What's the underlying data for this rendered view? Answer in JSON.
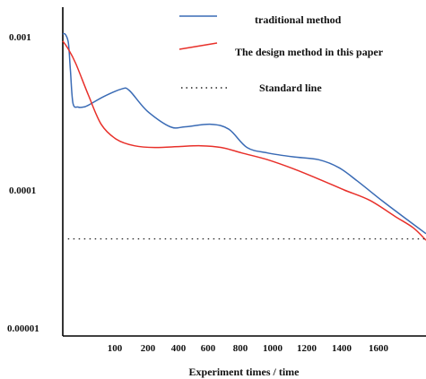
{
  "chart_data": {
    "type": "line",
    "title": "",
    "xlabel": "Experiment times / time",
    "ylabel": "",
    "y_scale": "log",
    "ylim": [
      1e-05,
      0.0015
    ],
    "grid": false,
    "legend_position": "top-right",
    "x_ticks": [
      "100",
      "200",
      "400",
      "600",
      "800",
      "1000",
      "1200",
      "1400",
      "1600"
    ],
    "y_ticks": [
      "0.001",
      "0.0001",
      "0.00001"
    ],
    "series": [
      {
        "name": "traditional method",
        "color": "#3a6bb5",
        "style": "solid",
        "points": [
          [
            0,
            0.00106
          ],
          [
            10,
            0.00105
          ],
          [
            22,
            0.00092
          ],
          [
            30,
            0.0006
          ],
          [
            40,
            0.00037
          ],
          [
            60,
            0.00035
          ],
          [
            80,
            0.00035
          ],
          [
            100,
            0.00036
          ],
          [
            160,
            0.00041
          ],
          [
            230,
            0.00046
          ],
          [
            260,
            0.00045
          ],
          [
            330,
            0.00033
          ],
          [
            420,
            0.00026
          ],
          [
            480,
            0.00026
          ],
          [
            580,
            0.00027
          ],
          [
            650,
            0.00025
          ],
          [
            720,
            0.00019
          ],
          [
            800,
            0.000175
          ],
          [
            900,
            0.000165
          ],
          [
            1000,
            0.000158
          ],
          [
            1080,
            0.00014
          ],
          [
            1150,
            0.000115
          ],
          [
            1250,
            8.3e-05
          ],
          [
            1350,
            6e-05
          ],
          [
            1420,
            4.8e-05
          ]
        ]
      },
      {
        "name": "The design method in this paper",
        "color": "#e8302a",
        "style": "solid",
        "points": [
          [
            0,
            0.00095
          ],
          [
            20,
            0.00085
          ],
          [
            50,
            0.00068
          ],
          [
            100,
            0.00042
          ],
          [
            150,
            0.00027
          ],
          [
            210,
            0.000215
          ],
          [
            280,
            0.000195
          ],
          [
            360,
            0.00019
          ],
          [
            460,
            0.000193
          ],
          [
            540,
            0.000195
          ],
          [
            620,
            0.00019
          ],
          [
            700,
            0.000175
          ],
          [
            800,
            0.000158
          ],
          [
            900,
            0.000138
          ],
          [
            1000,
            0.000118
          ],
          [
            1100,
            0.0001
          ],
          [
            1200,
            8.4e-05
          ],
          [
            1300,
            6.4e-05
          ],
          [
            1370,
            5.3e-05
          ],
          [
            1420,
            4.3e-05
          ]
        ]
      },
      {
        "name": "Standard line",
        "color": "#222222",
        "style": "dotted",
        "points": [
          [
            20,
            4.4e-05
          ],
          [
            1420,
            4.4e-05
          ]
        ]
      }
    ]
  }
}
